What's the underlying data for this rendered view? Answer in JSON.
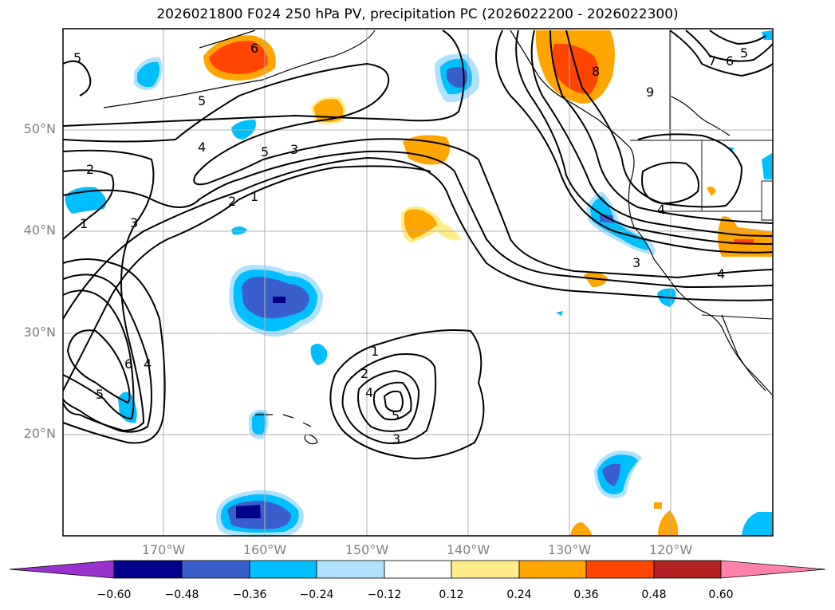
{
  "title": "2026021800 F024 250 hPa PV, precipitation PC (2026022200 - 2026022300)",
  "map": {
    "lat_labels": [
      "50°N",
      "40°N",
      "30°N",
      "20°N"
    ],
    "lon_labels": [
      "170°W",
      "160°W",
      "150°W",
      "140°W",
      "130°W",
      "120°W"
    ],
    "pv_contour_labels": [
      "5",
      "6",
      "5",
      "4",
      "5",
      "3",
      "2",
      "1",
      "2",
      "1",
      "3",
      "6",
      "4",
      "5",
      "1",
      "2",
      "4",
      "5",
      "3",
      "8",
      "9",
      "7",
      "6",
      "5",
      "3",
      "4",
      "4"
    ]
  },
  "colorbar": {
    "ticks": [
      "−0.60",
      "−0.48",
      "−0.36",
      "−0.24",
      "−0.12",
      "0.12",
      "0.24",
      "0.36",
      "0.48",
      "0.60"
    ],
    "colors": {
      "lt_m060": "#9932cc",
      "m060_m048": "#00008b",
      "m048_m036": "#3a5fcd",
      "m036_m024": "#00bfff",
      "m024_m012": "#b0e2ff",
      "m012_012": "#ffffff",
      "p012_024": "#ffec8b",
      "p024_036": "#ffa500",
      "p036_048": "#ff4500",
      "p048_060": "#b22222",
      "gt_060": "#ff82ab"
    }
  }
}
